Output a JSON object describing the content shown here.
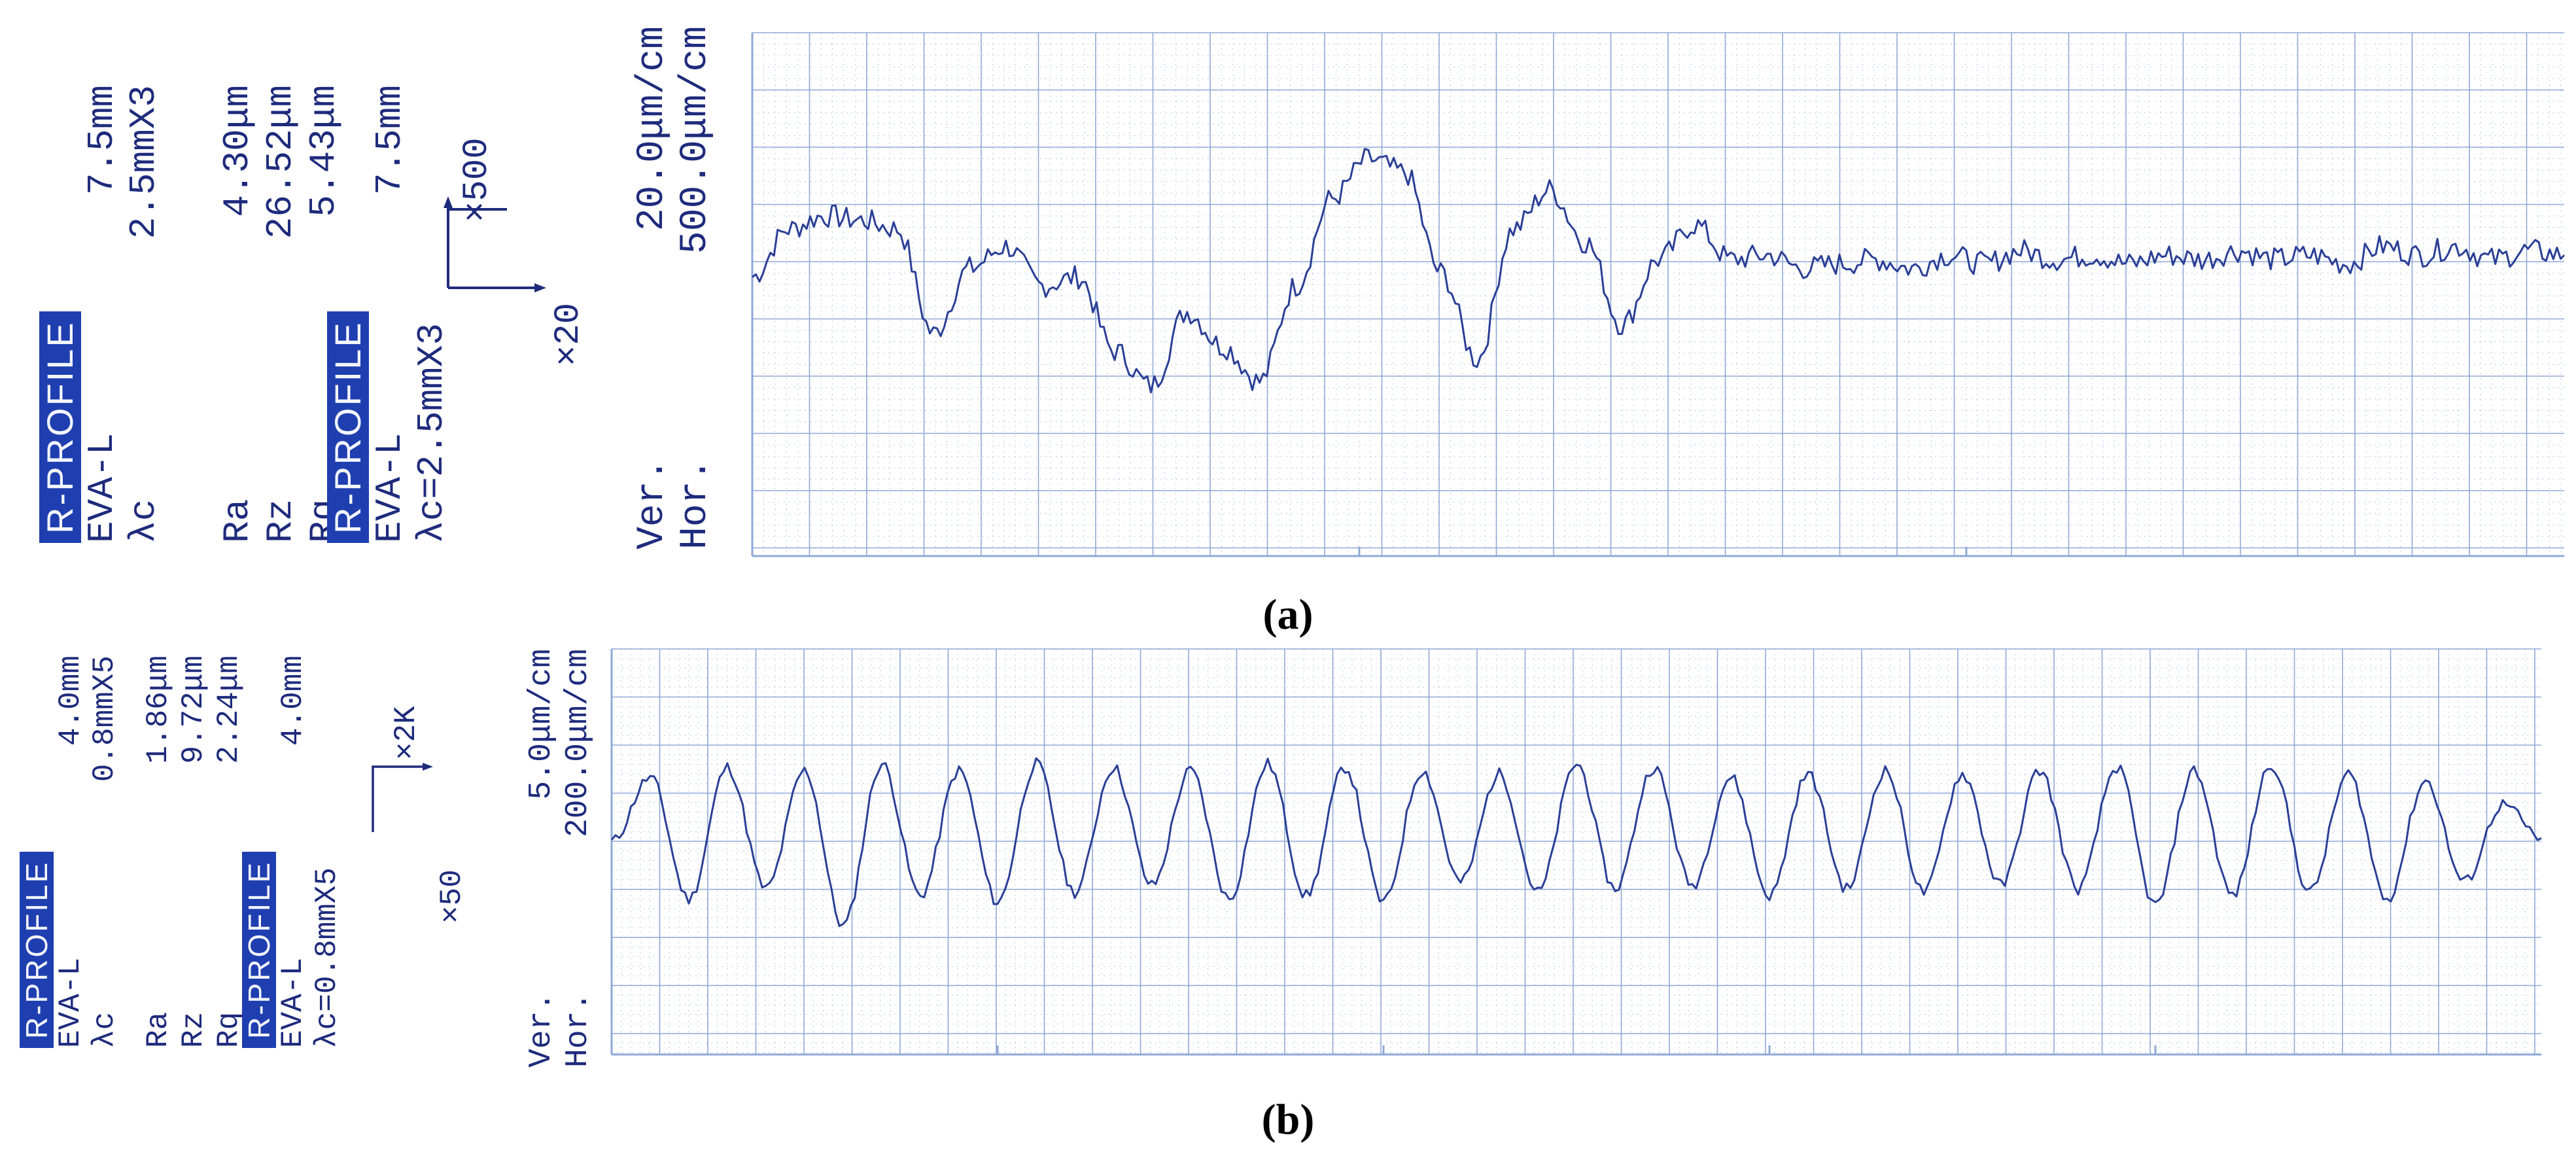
{
  "panel_a": {
    "caption": "(a)",
    "block1": {
      "badge": "R-PROFILE",
      "rows": [
        [
          "EVA-L",
          "7.5mm"
        ],
        [
          "λc",
          "2.5mmX3"
        ]
      ]
    },
    "block2": {
      "rows": [
        [
          "Ra",
          "4.30μm"
        ],
        [
          "Rz",
          "26.52μm"
        ],
        [
          "Rq",
          "5.43μm"
        ]
      ]
    },
    "block3": {
      "badge": "R-PROFILE",
      "rows": [
        [
          "EVA-L",
          "7.5mm"
        ]
      ],
      "line": "λc=2.5mmX3"
    },
    "mag": {
      "up": "×500",
      "right": "×20"
    },
    "scale": {
      "ver_label": "Ver.",
      "ver_value": "20.0μm/cm",
      "hor_label": "Hor.",
      "hor_value": "500.0μm/cm"
    }
  },
  "panel_b": {
    "caption": "(b)",
    "block1": {
      "badge": "R-PROFILE",
      "rows": [
        [
          "EVA-L",
          "4.0mm"
        ],
        [
          "λc",
          "0.8mmX5"
        ]
      ]
    },
    "block2": {
      "rows": [
        [
          "Ra",
          "1.86μm"
        ],
        [
          "Rz",
          "9.72μm"
        ],
        [
          "Rq",
          "2.24μm"
        ]
      ]
    },
    "block3": {
      "badge": "R-PROFILE",
      "rows": [
        [
          "EVA-L",
          "4.0mm"
        ]
      ],
      "line": "λc=0.8mmX5"
    },
    "mag": {
      "up": "×2K",
      "right": "×50"
    },
    "scale": {
      "ver_label": "Ver.",
      "ver_value": "5.0μm/cm",
      "hor_label": "Hor.",
      "hor_value": "200.0μm/cm"
    }
  },
  "colors": {
    "ink": "#1e2b7c",
    "trace": "#2a3f96",
    "grid_major": "#8fa8d6",
    "grid_minor": "#b9c9e8",
    "badge": "#1f3fb0"
  },
  "chart_data": [
    {
      "type": "line",
      "id": "a",
      "grid": true,
      "x_scale_label": "Hor. 500.0μm/cm",
      "y_scale_label": "Ver. 20.0μm/cm",
      "x": [
        0,
        2,
        4,
        6,
        8,
        10,
        12,
        14,
        16,
        18,
        20,
        22,
        24,
        26,
        28,
        30,
        32,
        34,
        36,
        38,
        40,
        42,
        44,
        46,
        48,
        50,
        52,
        54,
        56,
        58,
        60,
        62,
        64,
        66,
        68,
        70,
        72,
        74,
        76,
        78,
        80,
        82,
        84,
        86,
        88,
        90,
        92,
        94,
        96,
        98,
        100
      ],
      "values": [
        0.4,
        1.5,
        1.8,
        1.7,
        1.5,
        -0.9,
        0.6,
        1.1,
        0.2,
        0.4,
        -1.3,
        -2.1,
        -0.4,
        -1.2,
        -2.0,
        0.2,
        2.2,
        3.1,
        2.8,
        0.5,
        -1.5,
        1.5,
        2.4,
        1.2,
        -0.7,
        0.8,
        1.6,
        0.8,
        0.9,
        0.6,
        0.7,
        0.8,
        0.6,
        0.9,
        0.7,
        1.0,
        0.8,
        0.9,
        0.7,
        0.9,
        0.8,
        1.0,
        0.8,
        0.9,
        0.7,
        1.1,
        0.9,
        1.1,
        0.8,
        1.0,
        0.9
      ]
    },
    {
      "type": "line",
      "id": "b",
      "grid": true,
      "x_scale_label": "Hor. 200.0μm/cm",
      "y_scale_label": "Ver. 5.0μm/cm",
      "x": [
        0,
        2,
        4,
        6,
        8,
        10,
        12,
        14,
        16,
        18,
        20,
        22,
        24,
        26,
        28,
        30,
        32,
        34,
        36,
        38,
        40,
        42,
        44,
        46,
        48,
        50,
        52,
        54,
        56,
        58,
        60,
        62,
        64,
        66,
        68,
        70,
        72,
        74,
        76,
        78,
        80,
        82,
        84,
        86,
        88,
        90,
        92,
        94,
        96,
        98,
        100
      ],
      "values": [
        0.3,
        2.2,
        -1.4,
        2.5,
        -1.1,
        2.4,
        -2.2,
        2.6,
        -1.3,
        2.4,
        -1.5,
        2.6,
        -1.2,
        2.5,
        -1.0,
        2.4,
        -1.4,
        2.6,
        -1.3,
        2.5,
        -1.5,
        2.4,
        -0.9,
        2.3,
        -1.2,
        2.6,
        -1.1,
        2.5,
        -1.0,
        2.2,
        -1.3,
        2.3,
        -1.1,
        2.4,
        -1.2,
        2.3,
        -1.0,
        2.4,
        -1.1,
        2.5,
        -1.6,
        2.4,
        -1.3,
        2.6,
        -1.2,
        2.3,
        -1.4,
        2.1,
        -0.9,
        1.4,
        0.4
      ]
    }
  ]
}
